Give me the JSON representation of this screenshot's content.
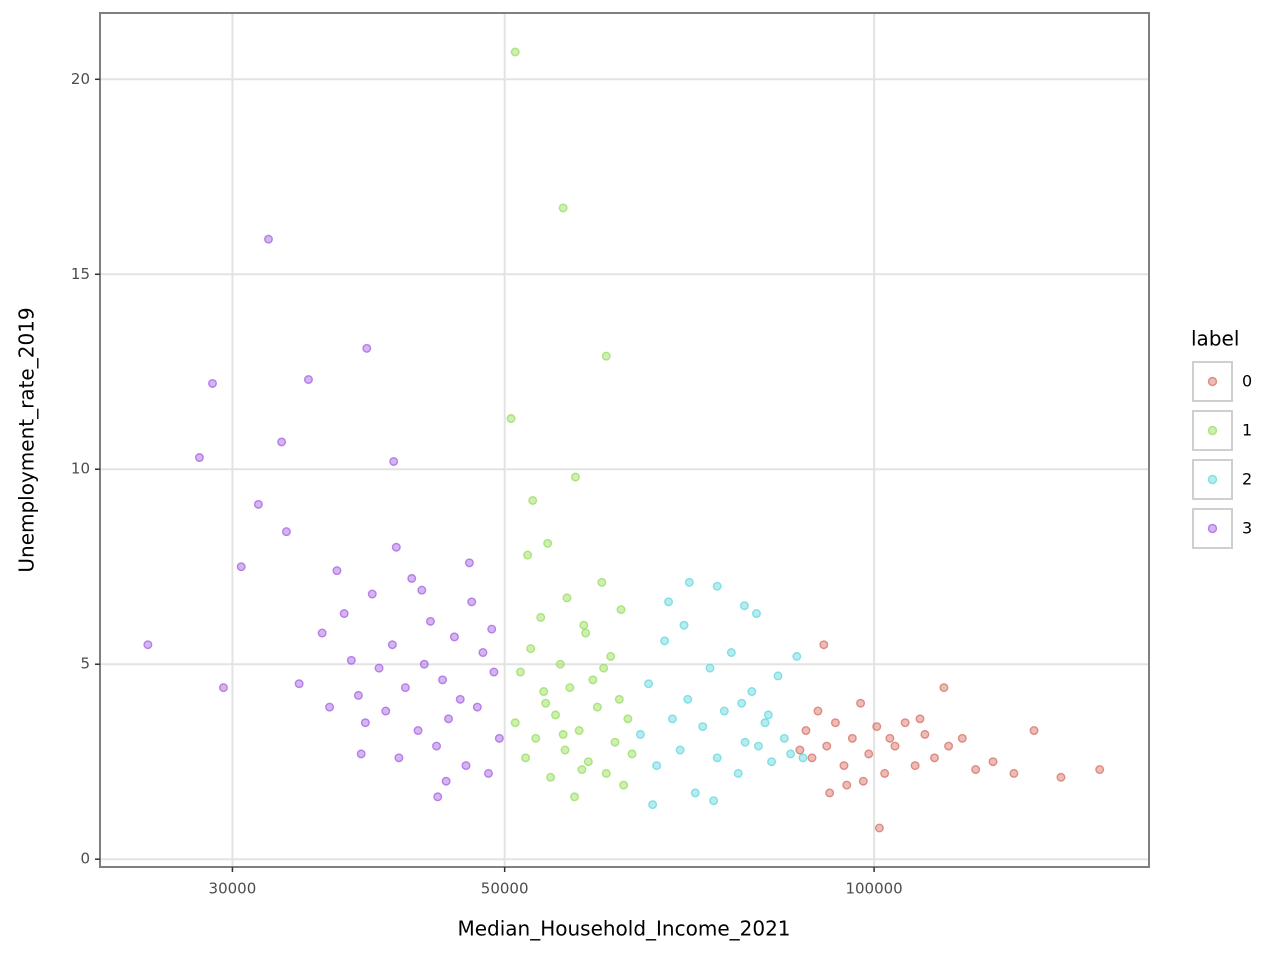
{
  "chart_data": {
    "type": "scatter",
    "x_label": "Median_Household_Income_2021",
    "y_label": "Unemployment_rate_2019",
    "legend_title": "label",
    "legend_position": "right",
    "x_log": true,
    "grid": true,
    "xlim": [
      23400,
      167500
    ],
    "ylim": [
      -0.2,
      21.7
    ],
    "xticks": [
      30000,
      50000,
      100000
    ],
    "yticks": [
      0,
      5,
      10,
      15,
      20
    ],
    "series": [
      {
        "name": "0",
        "color": "#d46a5e",
        "x": [
          88000,
          89000,
          90000,
          91500,
          93000,
          94500,
          96000,
          97500,
          99000,
          100500,
          102000,
          104000,
          106000,
          108000,
          110000,
          112000,
          115000,
          118000,
          121000,
          125000,
          130000,
          135000,
          92000,
          98000,
          87000,
          95000,
          103000,
          109000,
          101000,
          114000,
          152700,
          142000,
          91000
        ],
        "values": [
          3.3,
          2.6,
          3.8,
          2.9,
          3.5,
          2.4,
          3.1,
          4.0,
          2.7,
          3.4,
          2.2,
          2.9,
          3.5,
          2.4,
          3.2,
          2.6,
          2.9,
          3.1,
          2.3,
          2.5,
          2.2,
          3.3,
          1.7,
          2.0,
          2.8,
          1.9,
          3.1,
          3.6,
          0.8,
          4.4,
          2.3,
          2.1,
          5.5
        ]
      },
      {
        "name": "1",
        "color": "#93db55",
        "x": [
          51000,
          51500,
          52000,
          52500,
          53000,
          53500,
          54000,
          54500,
          55000,
          55500,
          56000,
          56500,
          57000,
          57500,
          58000,
          58500,
          59000,
          59500,
          60000,
          60500,
          61000,
          61500,
          62000,
          62500,
          63000,
          63500,
          52200,
          54200,
          56200,
          58200,
          60200,
          62200,
          55800,
          57800,
          53800,
          51000,
          55800,
          60500,
          50600,
          57100,
          52700
        ],
        "values": [
          3.5,
          4.8,
          2.6,
          5.4,
          3.1,
          6.2,
          4.0,
          2.1,
          3.7,
          5.0,
          2.8,
          4.4,
          1.6,
          3.3,
          6.0,
          2.5,
          4.6,
          3.9,
          7.1,
          2.2,
          5.2,
          3.0,
          4.1,
          1.9,
          3.6,
          2.7,
          7.8,
          8.1,
          6.7,
          5.8,
          4.9,
          6.4,
          3.2,
          2.3,
          4.3,
          20.7,
          16.7,
          12.9,
          11.3,
          9.8,
          9.2
        ]
      },
      {
        "name": "2",
        "color": "#5dd5dd",
        "x": [
          64500,
          65500,
          66500,
          67500,
          68500,
          69500,
          70500,
          71500,
          72500,
          73500,
          74500,
          75500,
          76500,
          77500,
          78500,
          79500,
          80500,
          81500,
          82500,
          83500,
          84500,
          85500,
          86500,
          87500,
          66000,
          70000,
          74000,
          78000,
          82000,
          68000,
          70700,
          74500,
          78400,
          80200
        ],
        "values": [
          3.2,
          4.5,
          2.4,
          5.6,
          3.6,
          2.8,
          4.1,
          1.7,
          3.4,
          4.9,
          2.6,
          3.8,
          5.3,
          2.2,
          3.0,
          4.3,
          2.9,
          3.5,
          2.5,
          4.7,
          3.1,
          2.7,
          5.2,
          2.6,
          1.4,
          6.0,
          1.5,
          4.0,
          3.7,
          6.6,
          7.1,
          7.0,
          6.5,
          6.3
        ]
      },
      {
        "name": "3",
        "color": "#a05ae0",
        "x": [
          34000,
          35500,
          36000,
          37000,
          37500,
          38000,
          38500,
          39000,
          39500,
          40000,
          40500,
          41000,
          41500,
          42000,
          42500,
          43000,
          43500,
          44000,
          44500,
          45000,
          45500,
          46000,
          46500,
          47000,
          47500,
          48000,
          48500,
          49000,
          49500,
          36500,
          38200,
          40800,
          42800,
          44800,
          46800,
          48800,
          30500,
          31500,
          29500,
          33200,
          25600,
          32100,
          28900,
          28200,
          38600,
          34600,
          32900,
          40600,
          44100
        ],
        "values": [
          4.5,
          5.8,
          3.9,
          6.3,
          5.1,
          4.2,
          3.5,
          6.8,
          4.9,
          3.8,
          5.5,
          2.6,
          4.4,
          7.2,
          3.3,
          5.0,
          6.1,
          2.9,
          4.6,
          3.6,
          5.7,
          4.1,
          2.4,
          6.6,
          3.9,
          5.3,
          2.2,
          4.8,
          3.1,
          7.4,
          2.7,
          8.0,
          6.9,
          2.0,
          7.6,
          5.9,
          7.5,
          9.1,
          4.4,
          8.4,
          5.5,
          15.9,
          12.2,
          10.3,
          13.1,
          12.3,
          10.7,
          10.2,
          1.6
        ]
      }
    ]
  }
}
